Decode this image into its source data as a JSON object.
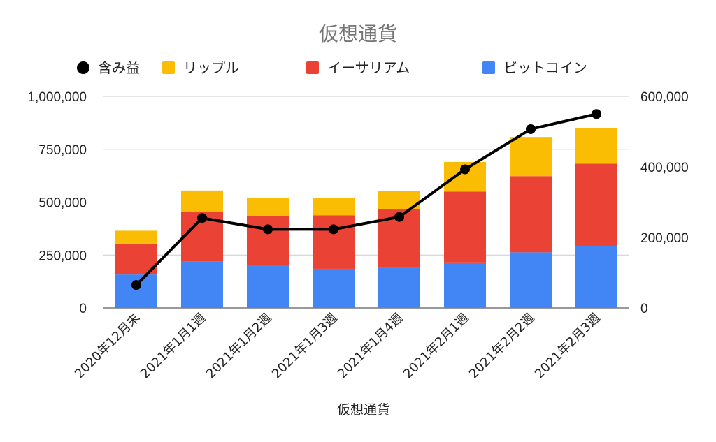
{
  "chart_data": {
    "type": "bar",
    "stacked": true,
    "title": "仮想通貨",
    "xlabel": "仮想通貨",
    "categories": [
      "2020年12月末",
      "2021年1月1週",
      "2021年1月2週",
      "2021年1月3週",
      "2021年1月4週",
      "2021年2月1週",
      "2021年2月2週",
      "2021年2月3週"
    ],
    "legend_position": "top",
    "series": [
      {
        "name": "ビットコイン",
        "type": "bar",
        "axis": "left",
        "color": "#4285F4",
        "values": [
          158000,
          220000,
          203000,
          185000,
          190000,
          215000,
          263000,
          292000
        ]
      },
      {
        "name": "イーサリアム",
        "type": "bar",
        "axis": "left",
        "color": "#EA4335",
        "values": [
          146000,
          235000,
          230000,
          253000,
          276000,
          335000,
          360000,
          390000
        ]
      },
      {
        "name": "リップル",
        "type": "bar",
        "axis": "left",
        "color": "#FBBC04",
        "values": [
          61000,
          100000,
          88000,
          83000,
          88000,
          140000,
          185000,
          168000
        ]
      },
      {
        "name": "含み益",
        "type": "line",
        "axis": "right",
        "color": "#000000",
        "values": [
          65000,
          255000,
          223000,
          223000,
          258000,
          393000,
          507000,
          550000
        ]
      }
    ],
    "legend_order": [
      "含み益",
      "リップル",
      "イーサリアム",
      "ビットコイン"
    ],
    "y_left": {
      "ylim": [
        0,
        1000000
      ],
      "ticks": [
        "0",
        "250,000",
        "500,000",
        "750,000",
        "1,000,000"
      ],
      "tick_values": [
        0,
        250000,
        500000,
        750000,
        1000000
      ]
    },
    "y_right": {
      "ylim": [
        0,
        600000
      ],
      "ticks": [
        "0",
        "200,000",
        "400,000",
        "600,000"
      ],
      "tick_values": [
        0,
        200000,
        400000,
        600000
      ]
    },
    "grid": true
  }
}
